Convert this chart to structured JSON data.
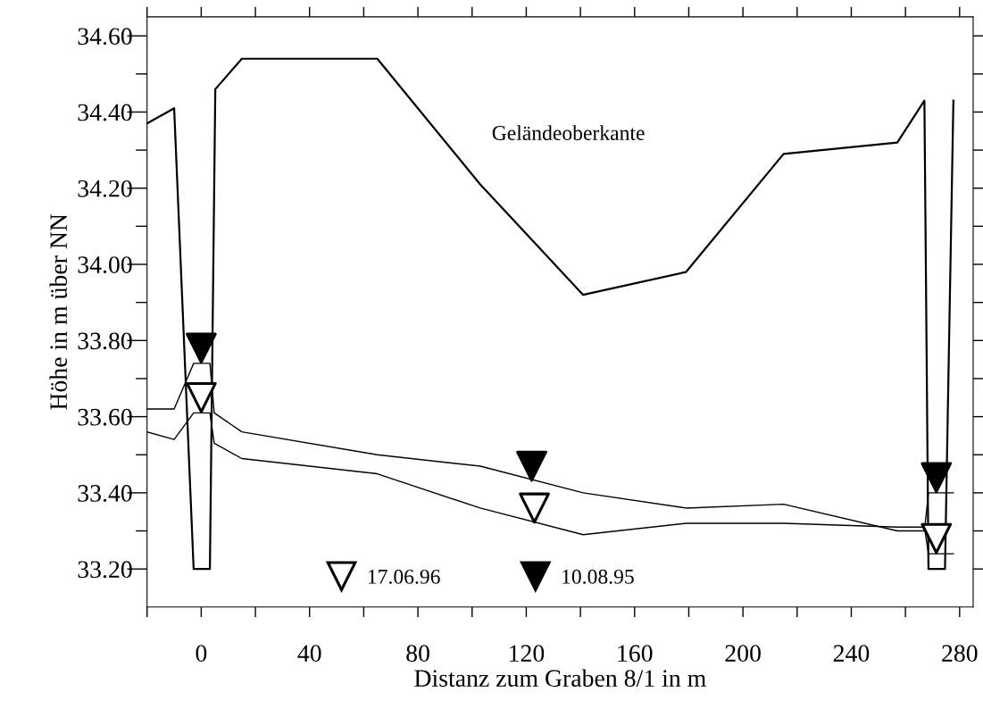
{
  "chart_data": {
    "type": "line",
    "xlabel": "Distanz zum Graben 8/1 in m",
    "ylabel": "Höhe in m über NN",
    "xlim": [
      -20,
      285
    ],
    "ylim": [
      33.1,
      34.65
    ],
    "xticks": [
      {
        "value": -20,
        "label": null
      },
      0,
      {
        "value": 20,
        "label": null
      },
      40,
      {
        "value": 60,
        "label": null
      },
      80,
      {
        "value": 100,
        "label": null
      },
      120,
      {
        "value": 140,
        "label": null
      },
      160,
      {
        "value": 180,
        "label": null
      },
      200,
      {
        "value": 220,
        "label": null
      },
      240,
      {
        "value": 260,
        "label": null
      },
      280
    ],
    "yticks": [
      {
        "value": 33.2,
        "label": "33.20"
      },
      {
        "value": 33.3,
        "label": null
      },
      {
        "value": 33.4,
        "label": "33.40"
      },
      {
        "value": 33.5,
        "label": null
      },
      {
        "value": 33.6,
        "label": "33.60"
      },
      {
        "value": 33.7,
        "label": null
      },
      {
        "value": 33.8,
        "label": "33.80"
      },
      {
        "value": 33.9,
        "label": null
      },
      {
        "value": 34.0,
        "label": "34.00"
      },
      {
        "value": 34.1,
        "label": null
      },
      {
        "value": 34.2,
        "label": "34.20"
      },
      {
        "value": 34.3,
        "label": null
      },
      {
        "value": 34.4,
        "label": "34.40"
      },
      {
        "value": 34.5,
        "label": null
      },
      {
        "value": 34.6,
        "label": "34.60"
      }
    ],
    "grid": false,
    "legend": "bottom",
    "series": [
      {
        "name": "Geländeoberkante",
        "color": "#000000",
        "x": [
          -20,
          -10,
          -2.8,
          3.2,
          5.2,
          15,
          65,
          103,
          141,
          179,
          215,
          257,
          267,
          268.5,
          274.6,
          277.7
        ],
        "values": [
          34.37,
          34.41,
          33.2,
          33.2,
          34.46,
          34.54,
          34.54,
          34.21,
          33.92,
          33.98,
          34.29,
          34.32,
          34.43,
          33.2,
          33.2,
          34.43
        ]
      },
      {
        "color": "#000000",
        "x": [
          -20,
          -10,
          -2.8,
          3.2,
          4.8,
          15,
          65,
          103,
          141,
          179,
          215,
          257,
          267,
          268.5,
          277.7
        ],
        "values": [
          33.62,
          33.62,
          33.74,
          33.74,
          33.61,
          33.56,
          33.5,
          33.47,
          33.4,
          33.36,
          33.37,
          33.3,
          33.3,
          33.4,
          33.4
        ]
      },
      {
        "color": "#000000",
        "x": [
          -20,
          -10,
          -2.8,
          3.2,
          4.8,
          15,
          65,
          103,
          141,
          179,
          215,
          257,
          267,
          268.5,
          277.7
        ],
        "values": [
          33.56,
          33.54,
          33.61,
          33.61,
          33.53,
          33.49,
          33.45,
          33.36,
          33.29,
          33.32,
          33.32,
          33.31,
          33.31,
          33.24,
          33.24
        ]
      },
      {
        "name": "17.06.96",
        "type": "scatter",
        "marker": "triangle",
        "color": "#ffffff",
        "x": [
          0,
          123,
          271.4
        ],
        "values": [
          33.65,
          33.36,
          33.28
        ]
      },
      {
        "name": "10.08.95",
        "type": "scatter",
        "marker": "triangle",
        "color": "#000000",
        "x": [
          0,
          122,
          271.4
        ],
        "values": [
          33.78,
          33.47,
          33.44
        ]
      }
    ]
  }
}
